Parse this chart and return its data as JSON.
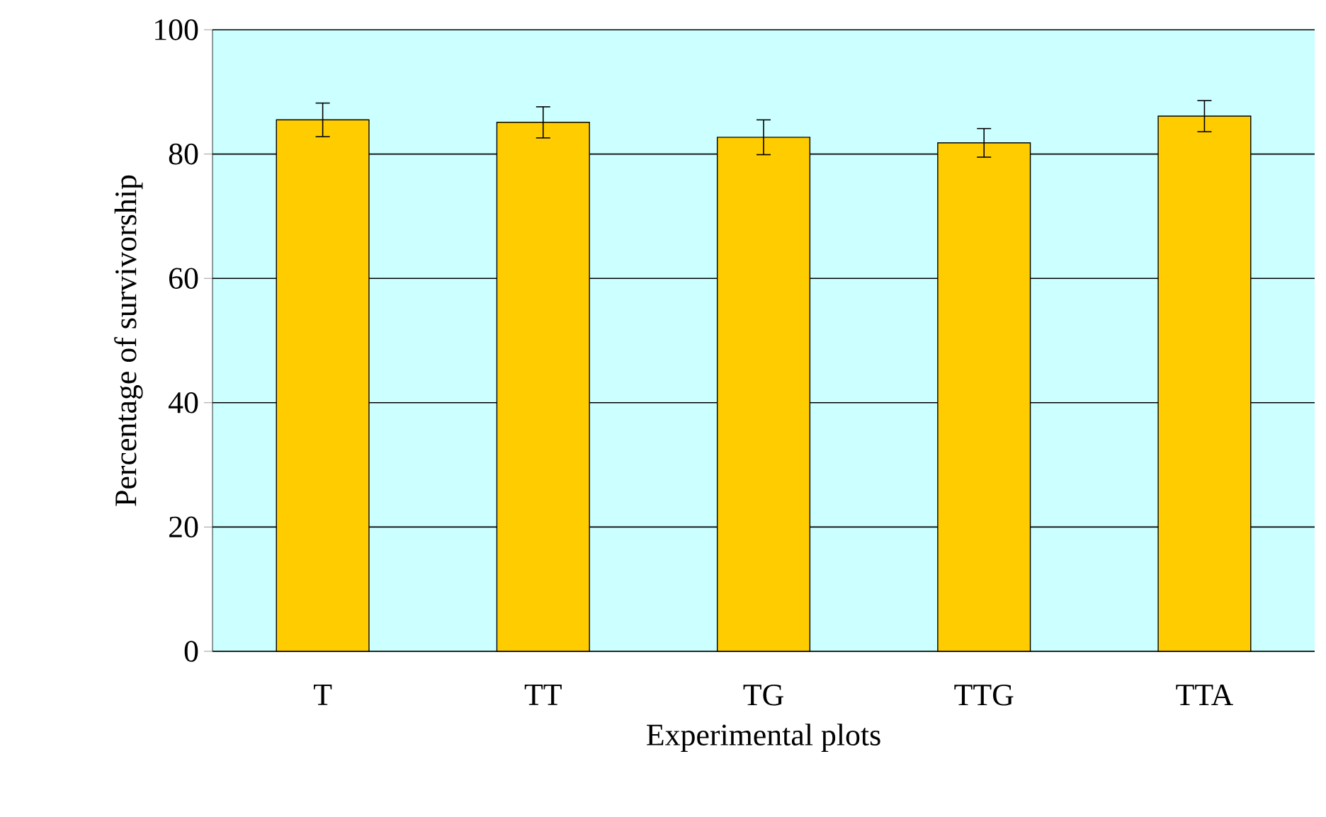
{
  "chart_data": {
    "type": "bar",
    "xlabel": "Experimental plots",
    "ylabel": "Percentage of survivorship",
    "categories": [
      "T",
      "TT",
      "TG",
      "TTG",
      "TTA"
    ],
    "values": [
      85.5,
      85.1,
      82.7,
      81.8,
      86.1
    ],
    "errors": [
      2.7,
      2.5,
      2.8,
      2.3,
      2.5
    ],
    "color": "#ffcc00",
    "ylim": [
      0,
      100
    ],
    "yticks": [
      0,
      20,
      40,
      60,
      80,
      100
    ],
    "grid": "y"
  }
}
